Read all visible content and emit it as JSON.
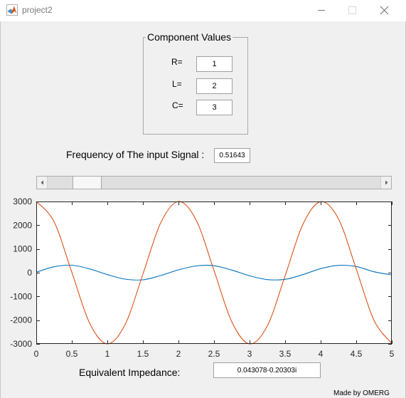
{
  "window": {
    "title": "project2",
    "minimize_icon": "minimize-icon",
    "maximize_icon": "maximize-icon",
    "close_icon": "close-icon",
    "app_icon": "matlab-icon"
  },
  "component_panel": {
    "title": "Component Values",
    "r_label": "R=",
    "r_value": "1",
    "l_label": "L=",
    "l_value": "2",
    "c_label": "C=",
    "c_value": "3"
  },
  "frequency": {
    "label": "Frequency of The input Signal :",
    "value": "0.51643",
    "slider_fraction": 0.0812
  },
  "impedance": {
    "label": "Equivalent Impedance:",
    "value": "0.043078-0.20303i"
  },
  "footer": {
    "credit": "Made by OMERG"
  },
  "colors": {
    "series_1": "#0072bd",
    "series_2": "#d95319"
  },
  "chart_data": {
    "type": "line",
    "title": "",
    "xlabel": "",
    "ylabel": "",
    "xlim": [
      0,
      5
    ],
    "ylim": [
      -3000,
      3000
    ],
    "x_ticks": [
      0,
      0.5,
      1,
      1.5,
      2,
      2.5,
      3,
      3.5,
      4,
      4.5,
      5
    ],
    "x_tick_labels": [
      "0",
      "0.5",
      "1",
      "1.5",
      "2",
      "2.5",
      "3",
      "3.5",
      "4",
      "4.5",
      "5"
    ],
    "y_ticks": [
      3000,
      2000,
      1000,
      0,
      -1000,
      -2000,
      -3000
    ],
    "y_tick_labels": [
      "3000",
      "2000",
      "1000",
      "0",
      "-1000",
      "-2000",
      "-3000"
    ],
    "grid": false,
    "series": [
      {
        "color": "#0072bd",
        "x": [
          0,
          0.25,
          0.5,
          0.75,
          1.0,
          1.25,
          1.5,
          1.75,
          2.0,
          2.25,
          2.5,
          2.75,
          3.0,
          3.25,
          3.5,
          3.75,
          4.0,
          4.25,
          4.5,
          4.75,
          5.0
        ],
        "values": [
          20,
          250,
          315,
          160,
          -80,
          -270,
          -300,
          -120,
          120,
          285,
          295,
          110,
          -130,
          -290,
          -280,
          -80,
          170,
          310,
          260,
          40,
          -95
        ]
      },
      {
        "color": "#d95319",
        "x": [
          0,
          0.25,
          0.5,
          0.75,
          1.0,
          1.25,
          1.5,
          1.75,
          2.0,
          2.25,
          2.5,
          2.75,
          3.0,
          3.25,
          3.5,
          3.75,
          4.0,
          4.25,
          4.5,
          4.75,
          5.0
        ],
        "values": [
          3000,
          2150,
          20,
          -2120,
          -3000,
          -2180,
          -60,
          2100,
          3000,
          2210,
          90,
          -2070,
          -3000,
          -2240,
          -130,
          2040,
          2990,
          2270,
          160,
          -2010,
          -2980
        ]
      }
    ]
  }
}
